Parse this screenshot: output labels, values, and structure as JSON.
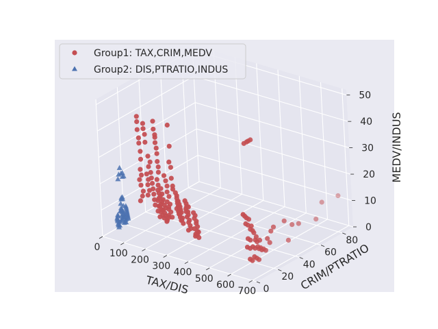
{
  "chart_data": {
    "type": "scatter",
    "projection": "3d",
    "background": "#eaeaf2",
    "grid": true,
    "legend_position": "upper-left",
    "xlabel": "TAX/DIS",
    "ylabel": "CRIM/PTRATIO",
    "zlabel": "MEDV/INDUS",
    "xlim": [
      0,
      720
    ],
    "ylim": [
      0,
      90
    ],
    "zlim": [
      0,
      52
    ],
    "xticks": [
      "0",
      "100",
      "200",
      "300",
      "400",
      "500",
      "600",
      "700"
    ],
    "yticks": [
      "0",
      "20",
      "40",
      "60",
      "80"
    ],
    "zticks": [
      "0",
      "10",
      "20",
      "30",
      "40",
      "50"
    ],
    "series": [
      {
        "name": "Group1: TAX,CRIM,MEDV",
        "marker": "circle",
        "color": "#c44e52",
        "points": [
          [
            188,
            0.1,
            50
          ],
          [
            188,
            0.1,
            48
          ],
          [
            188,
            0.1,
            45
          ],
          [
            193,
            0.1,
            42
          ],
          [
            193,
            0.1,
            40
          ],
          [
            198,
            0.1,
            37
          ],
          [
            198,
            0.1,
            34
          ],
          [
            193,
            0.2,
            30
          ],
          [
            198,
            0.1,
            28
          ],
          [
            188,
            0.1,
            26
          ],
          [
            193,
            0.2,
            24
          ],
          [
            203,
            0.1,
            22
          ],
          [
            198,
            0.2,
            20
          ],
          [
            188,
            0.1,
            18
          ],
          [
            216,
            0.1,
            48
          ],
          [
            216,
            0.2,
            46
          ],
          [
            222,
            0.1,
            44
          ],
          [
            222,
            0.2,
            41
          ],
          [
            233,
            0.1,
            36
          ],
          [
            233,
            0.2,
            32
          ],
          [
            223,
            0.1,
            29
          ],
          [
            229,
            0.2,
            27
          ],
          [
            226,
            0.1,
            25
          ],
          [
            233,
            0.1,
            23
          ],
          [
            224,
            0.2,
            21
          ],
          [
            242,
            0.1,
            34
          ],
          [
            242,
            0.2,
            30
          ],
          [
            245,
            0.1,
            28
          ],
          [
            247,
            0.2,
            26
          ],
          [
            250,
            0.1,
            24
          ],
          [
            252,
            0.2,
            22
          ],
          [
            254,
            0.1,
            20
          ],
          [
            256,
            0.2,
            18
          ],
          [
            264,
            0.1,
            50
          ],
          [
            264,
            0.2,
            47
          ],
          [
            270,
            0.1,
            45
          ],
          [
            270,
            0.2,
            44
          ],
          [
            270,
            0.1,
            42
          ],
          [
            274,
            0.2,
            40
          ],
          [
            276,
            0.1,
            38
          ],
          [
            276,
            0.1,
            35
          ],
          [
            279,
            0.2,
            33
          ],
          [
            279,
            0.1,
            31
          ],
          [
            270,
            0.2,
            28
          ],
          [
            275,
            0.1,
            26
          ],
          [
            272,
            0.2,
            24
          ],
          [
            277,
            0.1,
            23
          ],
          [
            282,
            0.2,
            22
          ],
          [
            275,
            0.1,
            21
          ],
          [
            270,
            0.2,
            20
          ],
          [
            284,
            0.1,
            19
          ],
          [
            273,
            0.2,
            18
          ],
          [
            278,
            0.1,
            18
          ],
          [
            286,
            0.2,
            17
          ],
          [
            281,
            0.1,
            16
          ],
          [
            268,
            0.2,
            16
          ],
          [
            290,
            0.1,
            15
          ],
          [
            276,
            0.2,
            14
          ],
          [
            287,
            0.1,
            25
          ],
          [
            291,
            0.2,
            23
          ],
          [
            295,
            0.1,
            21
          ],
          [
            289,
            0.2,
            20
          ],
          [
            300,
            0.1,
            19
          ],
          [
            305,
            0.2,
            18
          ],
          [
            293,
            0.1,
            17
          ],
          [
            299,
            0.2,
            16
          ],
          [
            303,
            0.1,
            15
          ],
          [
            296,
            0.2,
            14
          ],
          [
            308,
            0.1,
            13
          ],
          [
            300,
            1.0,
            30
          ],
          [
            304,
            1.5,
            28
          ],
          [
            307,
            2.0,
            26
          ],
          [
            310,
            1.2,
            24
          ],
          [
            311,
            2.5,
            22
          ],
          [
            305,
            1.8,
            20
          ],
          [
            312,
            3.0,
            19
          ],
          [
            309,
            2.2,
            18
          ],
          [
            306,
            2.8,
            17
          ],
          [
            313,
            3.2,
            16
          ],
          [
            310,
            1.6,
            15
          ],
          [
            307,
            2.4,
            14
          ],
          [
            303,
            1.4,
            13
          ],
          [
            316,
            3.6,
            14
          ],
          [
            330,
            0.5,
            50
          ],
          [
            333,
            0.8,
            42
          ],
          [
            330,
            0.4,
            36
          ],
          [
            335,
            0.8,
            34
          ],
          [
            337,
            0.5,
            30
          ],
          [
            339,
            0.9,
            27
          ],
          [
            342,
            0.4,
            26
          ],
          [
            340,
            3.0,
            24
          ],
          [
            344,
            3.2,
            22
          ],
          [
            348,
            2.8,
            21
          ],
          [
            345,
            3.5,
            20
          ],
          [
            350,
            3.0,
            19
          ],
          [
            352,
            3.4,
            18
          ],
          [
            355,
            3.0,
            17
          ],
          [
            349,
            3.6,
            16
          ],
          [
            356,
            3.3,
            15
          ],
          [
            342,
            3.1,
            18
          ],
          [
            360,
            3.8,
            14
          ],
          [
            360,
            0.2,
            24
          ],
          [
            365,
            0.3,
            22
          ],
          [
            370,
            0.2,
            21
          ],
          [
            372,
            0.4,
            20
          ],
          [
            375,
            0.3,
            19
          ],
          [
            378,
            0.2,
            18
          ],
          [
            369,
            0.4,
            17
          ],
          [
            381,
            0.3,
            16
          ],
          [
            376,
            0.2,
            15
          ],
          [
            363,
            0.5,
            18
          ],
          [
            384,
            0.4,
            14
          ],
          [
            367,
            0.2,
            20
          ],
          [
            398,
            0.1,
            23
          ],
          [
            403,
            0.2,
            22
          ],
          [
            405,
            0.1,
            21
          ],
          [
            400,
            0.3,
            20
          ],
          [
            409,
            0.2,
            19
          ],
          [
            411,
            0.1,
            18
          ],
          [
            404,
            0.2,
            17
          ],
          [
            415,
            0.1,
            16
          ],
          [
            410,
            0.3,
            15
          ],
          [
            417,
            0.2,
            14
          ],
          [
            420,
            0.1,
            13
          ],
          [
            407,
            0.4,
            12
          ],
          [
            402,
            0.1,
            19
          ],
          [
            413,
            0.2,
            21
          ],
          [
            430,
            1.2,
            19
          ],
          [
            436,
            1.5,
            18
          ],
          [
            434,
            1.0,
            17
          ],
          [
            441,
            1.3,
            16
          ],
          [
            438,
            1.8,
            15
          ],
          [
            445,
            1.4,
            14
          ],
          [
            432,
            1.1,
            13
          ],
          [
            448,
            1.6,
            12
          ],
          [
            440,
            2.0,
            12
          ],
          [
            436,
            1.2,
            11
          ],
          [
            445,
            1.0,
            11
          ],
          [
            432,
            1.7,
            10
          ],
          [
            450,
            1.3,
            10
          ],
          [
            666,
            1.0,
            24
          ],
          [
            666,
            2.5,
            23
          ],
          [
            666,
            4.0,
            22
          ],
          [
            666,
            6.0,
            21
          ],
          [
            666,
            3.0,
            20
          ],
          [
            666,
            5.0,
            19
          ],
          [
            666,
            8.0,
            18
          ],
          [
            666,
            7.0,
            17
          ],
          [
            666,
            9.0,
            16
          ],
          [
            666,
            10.0,
            15
          ],
          [
            666,
            4.5,
            14
          ],
          [
            666,
            6.5,
            13
          ],
          [
            666,
            11.0,
            12
          ],
          [
            666,
            12.5,
            11
          ],
          [
            666,
            3.5,
            11
          ],
          [
            666,
            8.5,
            10
          ],
          [
            666,
            13.0,
            9
          ],
          [
            666,
            14.0,
            8
          ],
          [
            666,
            15.5,
            8
          ],
          [
            666,
            16.5,
            7
          ],
          [
            666,
            18.0,
            7
          ],
          [
            666,
            5.5,
            6
          ],
          [
            666,
            9.5,
            6
          ],
          [
            666,
            11.5,
            5
          ],
          [
            666,
            7.5,
            5
          ],
          [
            666,
            13.5,
            4
          ],
          [
            666,
            10.5,
            9
          ],
          [
            666,
            12.0,
            13
          ],
          [
            666,
            6.0,
            10
          ],
          [
            666,
            15.0,
            11
          ],
          [
            666,
            20.0,
            6
          ],
          [
            666,
            22.0,
            10
          ],
          [
            666,
            24.0,
            8
          ],
          [
            666,
            25.5,
            12
          ],
          [
            666,
            28.0,
            13
          ],
          [
            666,
            38.0,
            13
          ],
          [
            666,
            41.0,
            5
          ],
          [
            666,
            45.0,
            10
          ],
          [
            666,
            51.0,
            9
          ],
          [
            666,
            67.0,
            7
          ],
          [
            666,
            73.0,
            12
          ],
          [
            666,
            88.0,
            11
          ],
          [
            666,
            5.0,
            50
          ],
          [
            666,
            7.5,
            50
          ],
          [
            666,
            9.0,
            50
          ],
          [
            666,
            11.0,
            50
          ]
        ]
      },
      {
        "name": "Group2: DIS,PTRATIO,INDUS",
        "marker": "triangle",
        "color": "#4c72b0",
        "points": [
          [
            2.0,
            18,
            21.9
          ],
          [
            2.5,
            19,
            19.6
          ],
          [
            3.0,
            20,
            18.1
          ],
          [
            3.5,
            20,
            19.6
          ],
          [
            4.0,
            21,
            18.1
          ],
          [
            1.5,
            17,
            19.6
          ],
          [
            2.2,
            16,
            18.1
          ],
          [
            3.5,
            18,
            10.6
          ],
          [
            3.0,
            18,
            10.0
          ],
          [
            4.0,
            19,
            9.9
          ],
          [
            3.2,
            19,
            10.6
          ],
          [
            4.5,
            17,
            8.6
          ],
          [
            6.0,
            17,
            6.2
          ],
          [
            5.5,
            18,
            5.9
          ],
          [
            6.2,
            19,
            7.4
          ],
          [
            5.1,
            17,
            6.9
          ],
          [
            4.8,
            18,
            5.2
          ],
          [
            6.8,
            18,
            5.6
          ],
          [
            5.7,
            16,
            6.0
          ],
          [
            7.0,
            18,
            4.5
          ],
          [
            6.6,
            17,
            4.1
          ],
          [
            7.2,
            19,
            4.0
          ],
          [
            5.9,
            18,
            3.4
          ],
          [
            6.4,
            19,
            3.0
          ],
          [
            7.5,
            17,
            2.5
          ],
          [
            6.0,
            16,
            2.2
          ],
          [
            8.0,
            21,
            2.0
          ],
          [
            7.8,
            20,
            3.8
          ],
          [
            8.5,
            20,
            1.9
          ],
          [
            9.2,
            19,
            3.0
          ],
          [
            10.0,
            20,
            1.0
          ],
          [
            10.5,
            19,
            1.5
          ],
          [
            12.0,
            18,
            1.3
          ],
          [
            7.3,
            17,
            2.9
          ],
          [
            3.5,
            14,
            5.0
          ],
          [
            4.0,
            14,
            4.5
          ],
          [
            5.0,
            13,
            4.0
          ],
          [
            6.0,
            13,
            3.5
          ],
          [
            7.0,
            13,
            3.0
          ],
          [
            8.0,
            14,
            2.5
          ],
          [
            9.0,
            13,
            2.0
          ],
          [
            10.0,
            13,
            1.5
          ],
          [
            11.0,
            14,
            1.2
          ],
          [
            12.0,
            13,
            0.8
          ],
          [
            2.0,
            22,
            6.5
          ],
          [
            3.0,
            22,
            6.0
          ],
          [
            4.0,
            22,
            5.5
          ],
          [
            5.0,
            22,
            5.0
          ],
          [
            6.0,
            22,
            4.5
          ],
          [
            7.0,
            22,
            4.0
          ],
          [
            8.0,
            22,
            3.5
          ],
          [
            9.0,
            22,
            3.0
          ],
          [
            10.0,
            22,
            2.5
          ],
          [
            11.0,
            22,
            2.0
          ]
        ]
      }
    ]
  }
}
